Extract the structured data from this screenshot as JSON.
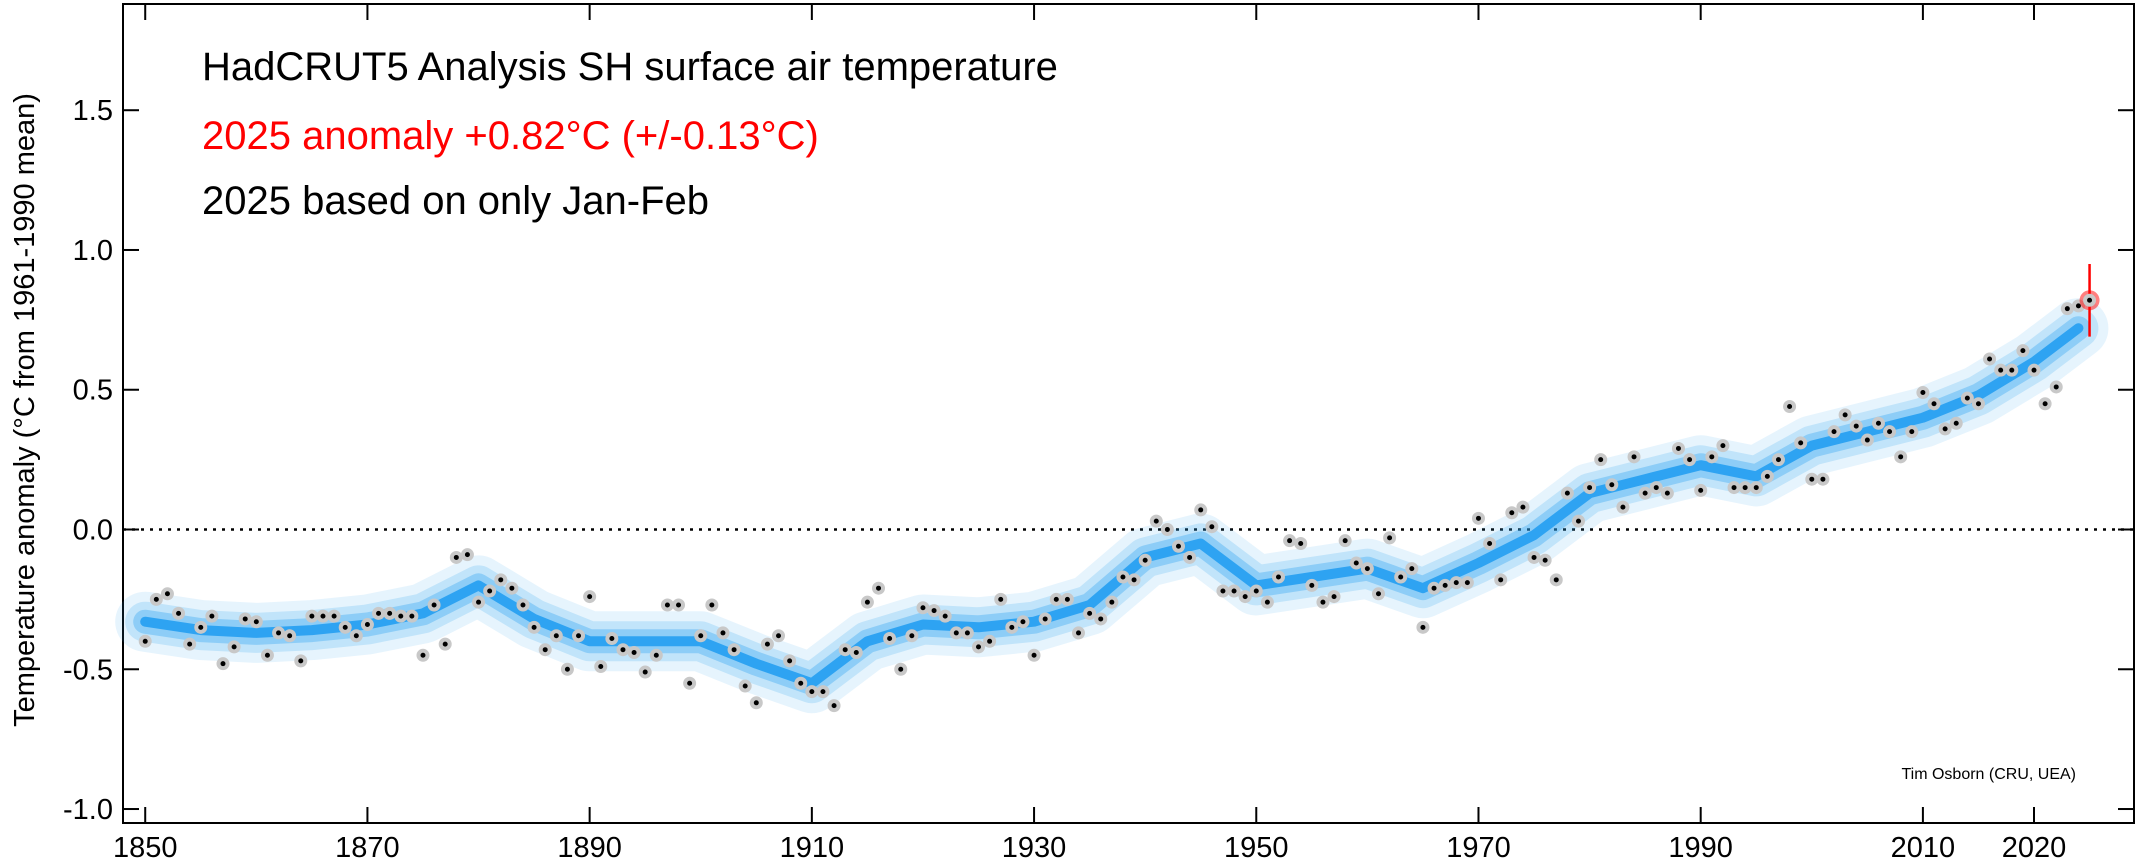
{
  "chart_data": {
    "type": "scatter",
    "title": "HadCRUT5 Analysis SH surface air temperature",
    "annotations": [
      "2025 anomaly +0.82°C (+/-0.13°C)",
      "2025 based on only Jan-Feb"
    ],
    "annotation_colors": [
      "#ff0000",
      "#000000"
    ],
    "credit": "Tim Osborn (CRU, UEA)",
    "ylabel": "Temperature anomaly (°C from 1961-1990 mean)",
    "xlim": [
      1848,
      2029
    ],
    "xticks": [
      1850,
      1870,
      1890,
      1910,
      1930,
      1950,
      1970,
      1990,
      2010,
      2020
    ],
    "ylim": [
      -1.05,
      1.88
    ],
    "yticks": [
      {
        "value": -1,
        "label": "-1.0"
      },
      -0.5,
      {
        "value": 0,
        "label": "0.0"
      },
      0.5,
      {
        "value": 1,
        "label": "1.0"
      },
      1.5
    ],
    "reference_line": 0,
    "series": [
      {
        "name": "annual",
        "color": "#000000",
        "x": [
          1850,
          1851,
          1852,
          1853,
          1854,
          1855,
          1856,
          1857,
          1858,
          1859,
          1860,
          1861,
          1862,
          1863,
          1864,
          1865,
          1866,
          1867,
          1868,
          1869,
          1870,
          1871,
          1872,
          1873,
          1874,
          1875,
          1876,
          1877,
          1878,
          1879,
          1880,
          1881,
          1882,
          1883,
          1884,
          1885,
          1886,
          1887,
          1888,
          1889,
          1890,
          1891,
          1892,
          1893,
          1894,
          1895,
          1896,
          1897,
          1898,
          1899,
          1900,
          1901,
          1902,
          1903,
          1904,
          1905,
          1906,
          1907,
          1908,
          1909,
          1910,
          1911,
          1912,
          1913,
          1914,
          1915,
          1916,
          1917,
          1918,
          1919,
          1920,
          1921,
          1922,
          1923,
          1924,
          1925,
          1926,
          1927,
          1928,
          1929,
          1930,
          1931,
          1932,
          1933,
          1934,
          1935,
          1936,
          1937,
          1938,
          1939,
          1940,
          1941,
          1942,
          1943,
          1944,
          1945,
          1946,
          1947,
          1948,
          1949,
          1950,
          1951,
          1952,
          1953,
          1954,
          1955,
          1956,
          1957,
          1958,
          1959,
          1960,
          1961,
          1962,
          1963,
          1964,
          1965,
          1966,
          1967,
          1968,
          1969,
          1970,
          1971,
          1972,
          1973,
          1974,
          1975,
          1976,
          1977,
          1978,
          1979,
          1980,
          1981,
          1982,
          1983,
          1984,
          1985,
          1986,
          1987,
          1988,
          1989,
          1990,
          1991,
          1992,
          1993,
          1994,
          1995,
          1996,
          1997,
          1998,
          1999,
          2000,
          2001,
          2002,
          2003,
          2004,
          2005,
          2006,
          2007,
          2008,
          2009,
          2010,
          2011,
          2012,
          2013,
          2014,
          2015,
          2016,
          2017,
          2018,
          2019,
          2020,
          2021,
          2022,
          2023,
          2024,
          2025
        ],
        "values": [
          -0.4,
          -0.25,
          -0.23,
          -0.3,
          -0.41,
          -0.35,
          -0.31,
          -0.48,
          -0.42,
          -0.32,
          -0.33,
          -0.45,
          -0.37,
          -0.38,
          -0.47,
          -0.31,
          -0.31,
          -0.31,
          -0.35,
          -0.38,
          -0.34,
          -0.3,
          -0.3,
          -0.31,
          -0.31,
          -0.45,
          -0.27,
          -0.41,
          -0.1,
          -0.09,
          -0.26,
          -0.22,
          -0.18,
          -0.21,
          -0.27,
          -0.35,
          -0.43,
          -0.38,
          -0.5,
          -0.38,
          -0.24,
          -0.49,
          -0.39,
          -0.43,
          -0.44,
          -0.51,
          -0.45,
          -0.27,
          -0.27,
          -0.55,
          -0.38,
          -0.27,
          -0.37,
          -0.43,
          -0.56,
          -0.62,
          -0.41,
          -0.38,
          -0.47,
          -0.55,
          -0.58,
          -0.58,
          -0.63,
          -0.43,
          -0.44,
          -0.26,
          -0.21,
          -0.39,
          -0.5,
          -0.38,
          -0.28,
          -0.29,
          -0.31,
          -0.37,
          -0.37,
          -0.42,
          -0.4,
          -0.25,
          -0.35,
          -0.33,
          -0.45,
          -0.32,
          -0.25,
          -0.25,
          -0.37,
          -0.3,
          -0.32,
          -0.26,
          -0.17,
          -0.18,
          -0.11,
          0.03,
          0.0,
          -0.06,
          -0.1,
          0.07,
          0.01,
          -0.22,
          -0.22,
          -0.24,
          -0.22,
          -0.26,
          -0.17,
          -0.04,
          -0.05,
          -0.2,
          -0.26,
          -0.24,
          -0.04,
          -0.12,
          -0.14,
          -0.23,
          -0.03,
          -0.17,
          -0.14,
          -0.35,
          -0.21,
          -0.2,
          -0.19,
          -0.19,
          0.04,
          -0.05,
          -0.18,
          0.06,
          0.08,
          -0.1,
          -0.11,
          -0.18,
          0.13,
          0.03,
          0.15,
          0.25,
          0.16,
          0.08,
          0.26,
          0.13,
          0.15,
          0.13,
          0.29,
          0.25,
          0.14,
          0.26,
          0.3,
          0.15,
          0.15,
          0.15,
          0.19,
          0.25,
          0.44,
          0.31,
          0.18,
          0.18,
          0.35,
          0.41,
          0.37,
          0.32,
          0.38,
          0.35,
          0.26,
          0.35,
          0.49,
          0.45,
          0.36,
          0.38,
          0.47,
          0.45,
          0.61,
          0.57,
          0.57,
          0.64,
          0.57,
          0.45,
          0.51,
          0.79,
          0.8,
          0.82
        ]
      },
      {
        "name": "smoothed",
        "color": "#2ea3f2",
        "x": [
          1850,
          1855,
          1860,
          1865,
          1870,
          1875,
          1880,
          1885,
          1890,
          1895,
          1900,
          1905,
          1910,
          1915,
          1920,
          1925,
          1930,
          1935,
          1940,
          1945,
          1950,
          1955,
          1960,
          1965,
          1970,
          1975,
          1980,
          1985,
          1990,
          1995,
          2000,
          2005,
          2010,
          2015,
          2020,
          2024
        ],
        "values": [
          -0.33,
          -0.36,
          -0.37,
          -0.36,
          -0.34,
          -0.3,
          -0.2,
          -0.32,
          -0.4,
          -0.4,
          -0.4,
          -0.48,
          -0.55,
          -0.4,
          -0.34,
          -0.35,
          -0.33,
          -0.27,
          -0.1,
          -0.05,
          -0.2,
          -0.17,
          -0.14,
          -0.21,
          -0.12,
          -0.02,
          0.13,
          0.18,
          0.23,
          0.19,
          0.3,
          0.35,
          0.4,
          0.48,
          0.6,
          0.72
        ]
      }
    ],
    "highlight_error": 0.13,
    "highlight_color": "#ff0000"
  }
}
